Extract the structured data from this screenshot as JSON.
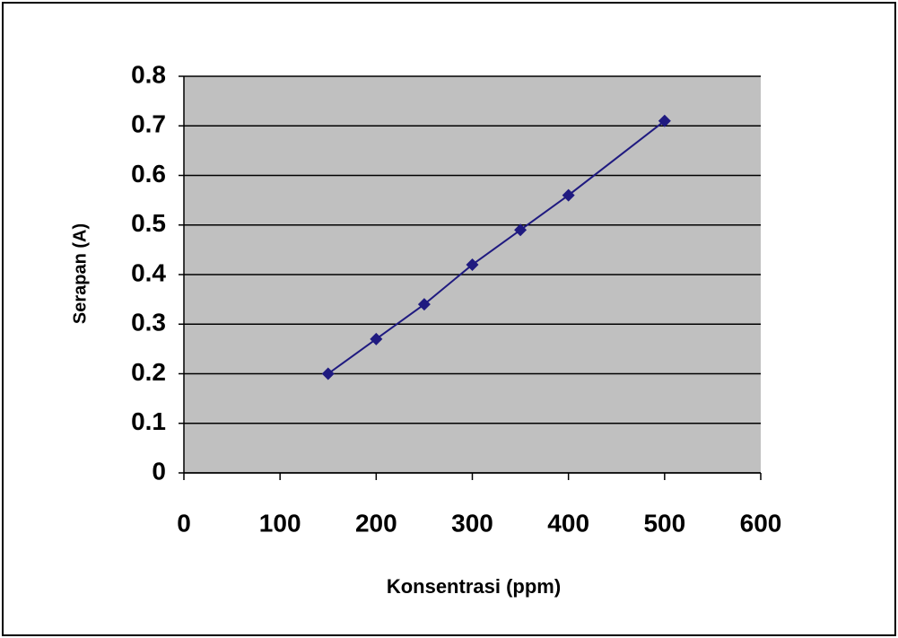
{
  "chart_data": {
    "type": "line",
    "x_label": "Konsentrasi (ppm)",
    "y_label": "Serapan (A)",
    "x": [
      150,
      200,
      250,
      300,
      350,
      400,
      500
    ],
    "series": [
      {
        "color": "#1f1a80",
        "values": [
          0.2,
          0.27,
          0.34,
          0.42,
          0.49,
          0.56,
          0.71
        ]
      }
    ],
    "xlim": [
      0,
      600
    ],
    "xticks": [
      0,
      100,
      200,
      300,
      400,
      500,
      600
    ],
    "ylim": [
      0,
      0.8
    ],
    "yticks": [
      0,
      0.1,
      0.2,
      0.3,
      0.4,
      0.5,
      0.6,
      0.7,
      0.8
    ],
    "grid": true,
    "plot_background": "#c0c0c0"
  }
}
